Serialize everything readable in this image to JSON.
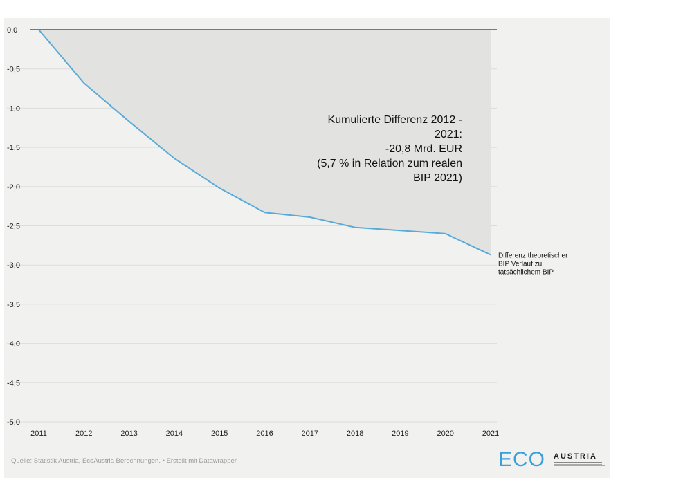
{
  "chart_data": {
    "type": "area",
    "x": [
      2011,
      2012,
      2013,
      2014,
      2015,
      2016,
      2017,
      2018,
      2019,
      2020,
      2021
    ],
    "y": [
      0.0,
      -0.68,
      -1.17,
      -1.64,
      -2.02,
      -2.33,
      -2.39,
      -2.52,
      -2.56,
      -2.6,
      -2.87
    ],
    "xlim": [
      2011,
      2021
    ],
    "ylim": [
      -5.0,
      0.0
    ],
    "yticks": [
      "0,0",
      "-0,5",
      "-1,0",
      "-1,5",
      "-2,0",
      "-2,5",
      "-3,0",
      "-3,5",
      "-4,0",
      "-4,5",
      "-5,0"
    ],
    "xticks": [
      "2011",
      "2012",
      "2013",
      "2014",
      "2015",
      "2016",
      "2017",
      "2018",
      "2019",
      "2020",
      "2021"
    ],
    "grid": true,
    "series": [
      {
        "name": "Differenz theoretischer BIP Verlauf zu tatsächlichem BIP",
        "color": "#5aaad8"
      }
    ],
    "series_label_lines": [
      "Differenz theoretischer",
      "BIP Verlauf zu",
      "tatsächlichem BIP"
    ],
    "annotation_lines": [
      "Kumulierte Differenz 2012 -",
      "2021:",
      "-20,8 Mrd. EUR",
      "(5,7 % in Relation zum realen",
      "BIP 2021)"
    ],
    "area_fill": "#e2e2e1"
  },
  "footer": {
    "source": "Quelle: Statistik Austria, EcoAustria Berechnungen. • Erstellt mit Datawrapper"
  },
  "logo": {
    "eco": "ECO",
    "austria": "AUSTRIA",
    "brand_color": "#3b9fd8"
  }
}
